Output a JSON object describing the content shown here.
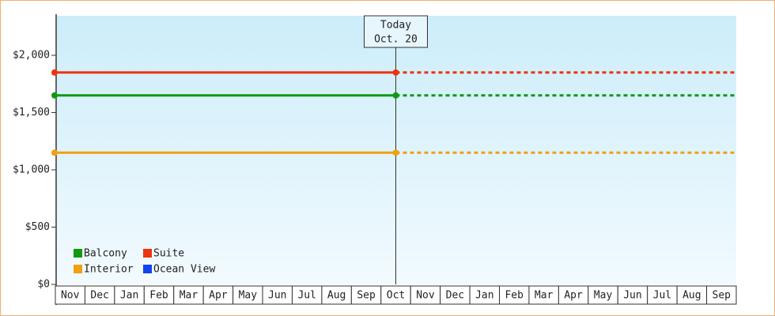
{
  "chart_data": {
    "type": "price-line",
    "categories": [
      "Nov",
      "Dec",
      "Jan",
      "Feb",
      "Mar",
      "Apr",
      "May",
      "Jun",
      "Jul",
      "Aug",
      "Sep",
      "Oct",
      "Nov",
      "Dec",
      "Jan",
      "Feb",
      "Mar",
      "Apr",
      "May",
      "Jun",
      "Jul",
      "Aug",
      "Sep"
    ],
    "series": [
      {
        "name": "Balcony",
        "color": "#119911",
        "value": 1650
      },
      {
        "name": "Suite",
        "color": "#ee3311",
        "value": 1850
      },
      {
        "name": "Interior",
        "color": "#f0a010",
        "value": 1150
      },
      {
        "name": "Ocean View",
        "color": "#1144ee",
        "value": null
      }
    ],
    "annotation": {
      "lines": [
        "Today",
        "Oct. 20"
      ],
      "category_index": 11
    },
    "ylim": [
      0,
      2345
    ],
    "yticks": [
      {
        "value": 0,
        "label": "$0"
      },
      {
        "value": 500,
        "label": "$500"
      },
      {
        "value": 1000,
        "label": "$1,000"
      },
      {
        "value": 1500,
        "label": "$1,500"
      },
      {
        "value": 2000,
        "label": "$2,000"
      }
    ]
  }
}
